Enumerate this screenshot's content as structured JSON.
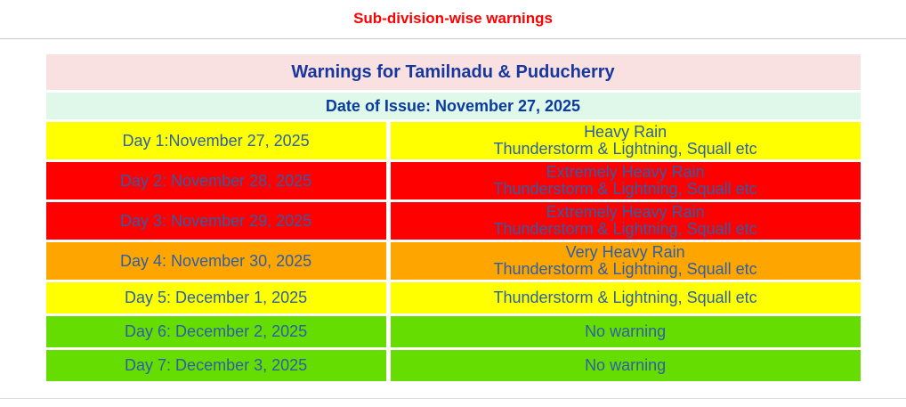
{
  "page_title": "Sub-division-wise warnings",
  "table": {
    "header": "Warnings for Tamilnadu & Puducherry",
    "date_of_issue": "Date of Issue: November 27, 2025",
    "rows": [
      {
        "day": "Day 1:November 27, 2025",
        "warning_line1": "Heavy Rain",
        "warning_line2": "Thunderstorm & Lightning, Squall etc",
        "severity": "yellow"
      },
      {
        "day": "Day 2: November 28, 2025",
        "warning_line1": "Extremely Heavy Rain",
        "warning_line2": "Thunderstorm & Lightning, Squall etc",
        "severity": "red"
      },
      {
        "day": "Day 3: November 29, 2025",
        "warning_line1": "Extremely Heavy Rain",
        "warning_line2": "Thunderstorm & Lightning, Squall etc",
        "severity": "red"
      },
      {
        "day": "Day 4: November 30, 2025",
        "warning_line1": "Very Heavy Rain",
        "warning_line2": "Thunderstorm & Lightning, Squall etc",
        "severity": "orange"
      },
      {
        "day": "Day 5: December 1, 2025",
        "warning_line1": "Thunderstorm & Lightning, Squall etc",
        "severity": "yellow"
      },
      {
        "day": "Day 6: December 2, 2025",
        "warning_line1": "No warning",
        "severity": "green"
      },
      {
        "day": "Day 7: December 3, 2025",
        "warning_line1": "No warning",
        "severity": "green"
      }
    ]
  },
  "colors": {
    "title_red": "#FF0000",
    "header_bg_pink": "#FAE1E1",
    "date_bg_mint": "#E0F8E9",
    "header_text_navy": "#17379E",
    "row_text_blue": "#2D5FA8",
    "severity_yellow": "#FFFF00",
    "severity_red": "#FF0000",
    "severity_orange": "#FFA500",
    "severity_green": "#66DD00"
  }
}
